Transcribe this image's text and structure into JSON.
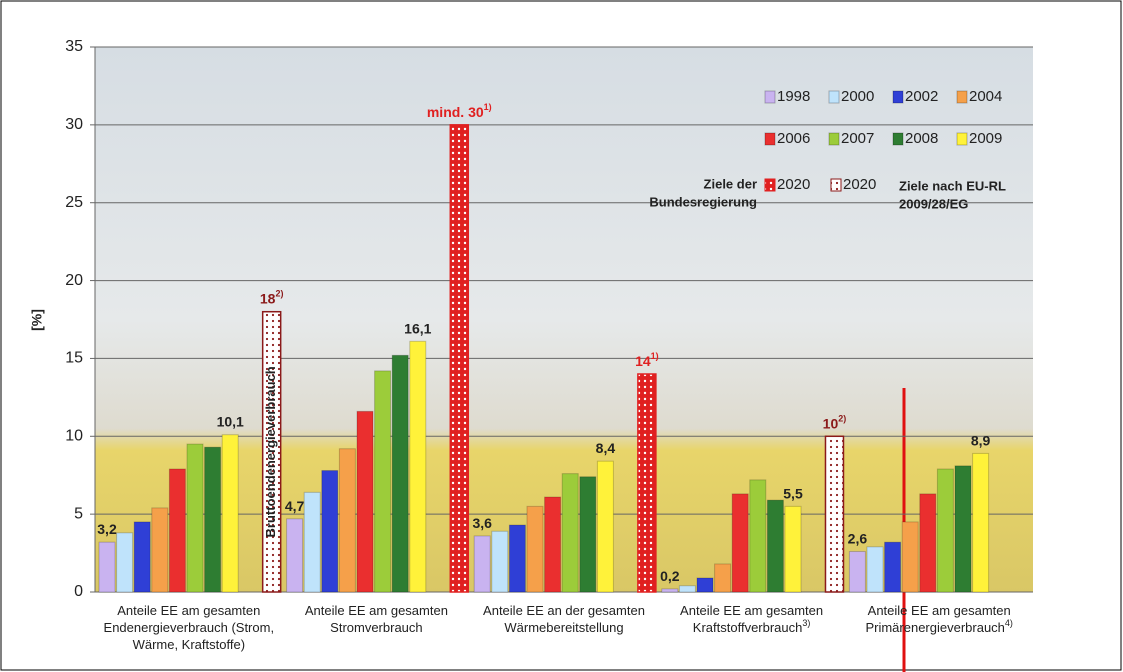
{
  "chart_data": {
    "type": "bar",
    "y_label": "[%]",
    "ylim": [
      0,
      35
    ],
    "yticks": [
      0,
      5,
      10,
      15,
      20,
      25,
      30,
      35
    ],
    "grid": true,
    "legend": "top-right",
    "categories": [
      [
        "Anteile EE am gesamten",
        "Endenergieverbrauch (Strom,",
        "Wärme, Kraftstoffe)"
      ],
      [
        "Anteile EE am gesamten",
        "Stromverbrauch"
      ],
      [
        "Anteile EE an der gesamten",
        "Wärmebereitstellung"
      ],
      [
        "Anteile EE am gesamten",
        "Kraftstoffverbrauch"
      ],
      [
        "Anteile EE am gesamten",
        "Primärenergieverbrauch"
      ]
    ],
    "category_notes": [
      null,
      null,
      null,
      "3)",
      "4)"
    ],
    "series": [
      {
        "name": "1998",
        "color": "#c9b3f0",
        "values": [
          3.2,
          4.7,
          3.6,
          0.2,
          2.6
        ],
        "value_labels": [
          "3,2",
          "4,7",
          "3,6",
          "0,2",
          "2,6"
        ]
      },
      {
        "name": "2000",
        "color": "#bfe3fb",
        "values": [
          3.8,
          6.4,
          3.9,
          0.4,
          2.9
        ]
      },
      {
        "name": "2002",
        "color": "#2f3fd6",
        "values": [
          4.5,
          7.8,
          4.3,
          0.9,
          3.2
        ]
      },
      {
        "name": "2004",
        "color": "#f5a04a",
        "values": [
          5.4,
          9.2,
          5.5,
          1.8,
          4.5
        ]
      },
      {
        "name": "2006",
        "color": "#ea2f2f",
        "values": [
          7.9,
          11.6,
          6.1,
          6.3,
          6.3
        ]
      },
      {
        "name": "2007",
        "color": "#9ccc3a",
        "values": [
          9.5,
          14.2,
          7.6,
          7.2,
          7.9
        ]
      },
      {
        "name": "2008",
        "color": "#2e7d32",
        "values": [
          9.3,
          15.2,
          7.4,
          5.9,
          8.1
        ]
      },
      {
        "name": "2009",
        "color": "#fff23a",
        "values": [
          10.1,
          16.1,
          8.4,
          5.5,
          8.9
        ],
        "value_labels": [
          "10,1",
          "16,1",
          "8,4",
          "5,5",
          "8,9"
        ]
      }
    ],
    "targets": [
      {
        "name": "2020",
        "group": "Ziele der Bundesregierung",
        "color": "#e02020",
        "values": [
          null,
          30,
          14,
          null,
          null
        ],
        "value_labels": [
          null,
          "mind. 30",
          "14",
          null,
          null
        ],
        "notes": [
          null,
          "1)",
          "1)",
          null,
          null
        ]
      },
      {
        "name": "2020",
        "group": "Ziele nach EU-RL 2009/28/EG",
        "color": "#8b1a1a",
        "values": [
          18,
          null,
          null,
          10,
          null
        ],
        "value_labels": [
          "18",
          null,
          null,
          "10",
          null
        ],
        "notes": [
          "2)",
          null,
          null,
          "2)",
          null
        ]
      }
    ],
    "target_legend": [
      "Ziele der",
      "Bundesregierung",
      "Ziele nach EU-RL",
      "2009/28/EG"
    ],
    "bar_annotation": "Bruttoendenergieverbrauch"
  }
}
